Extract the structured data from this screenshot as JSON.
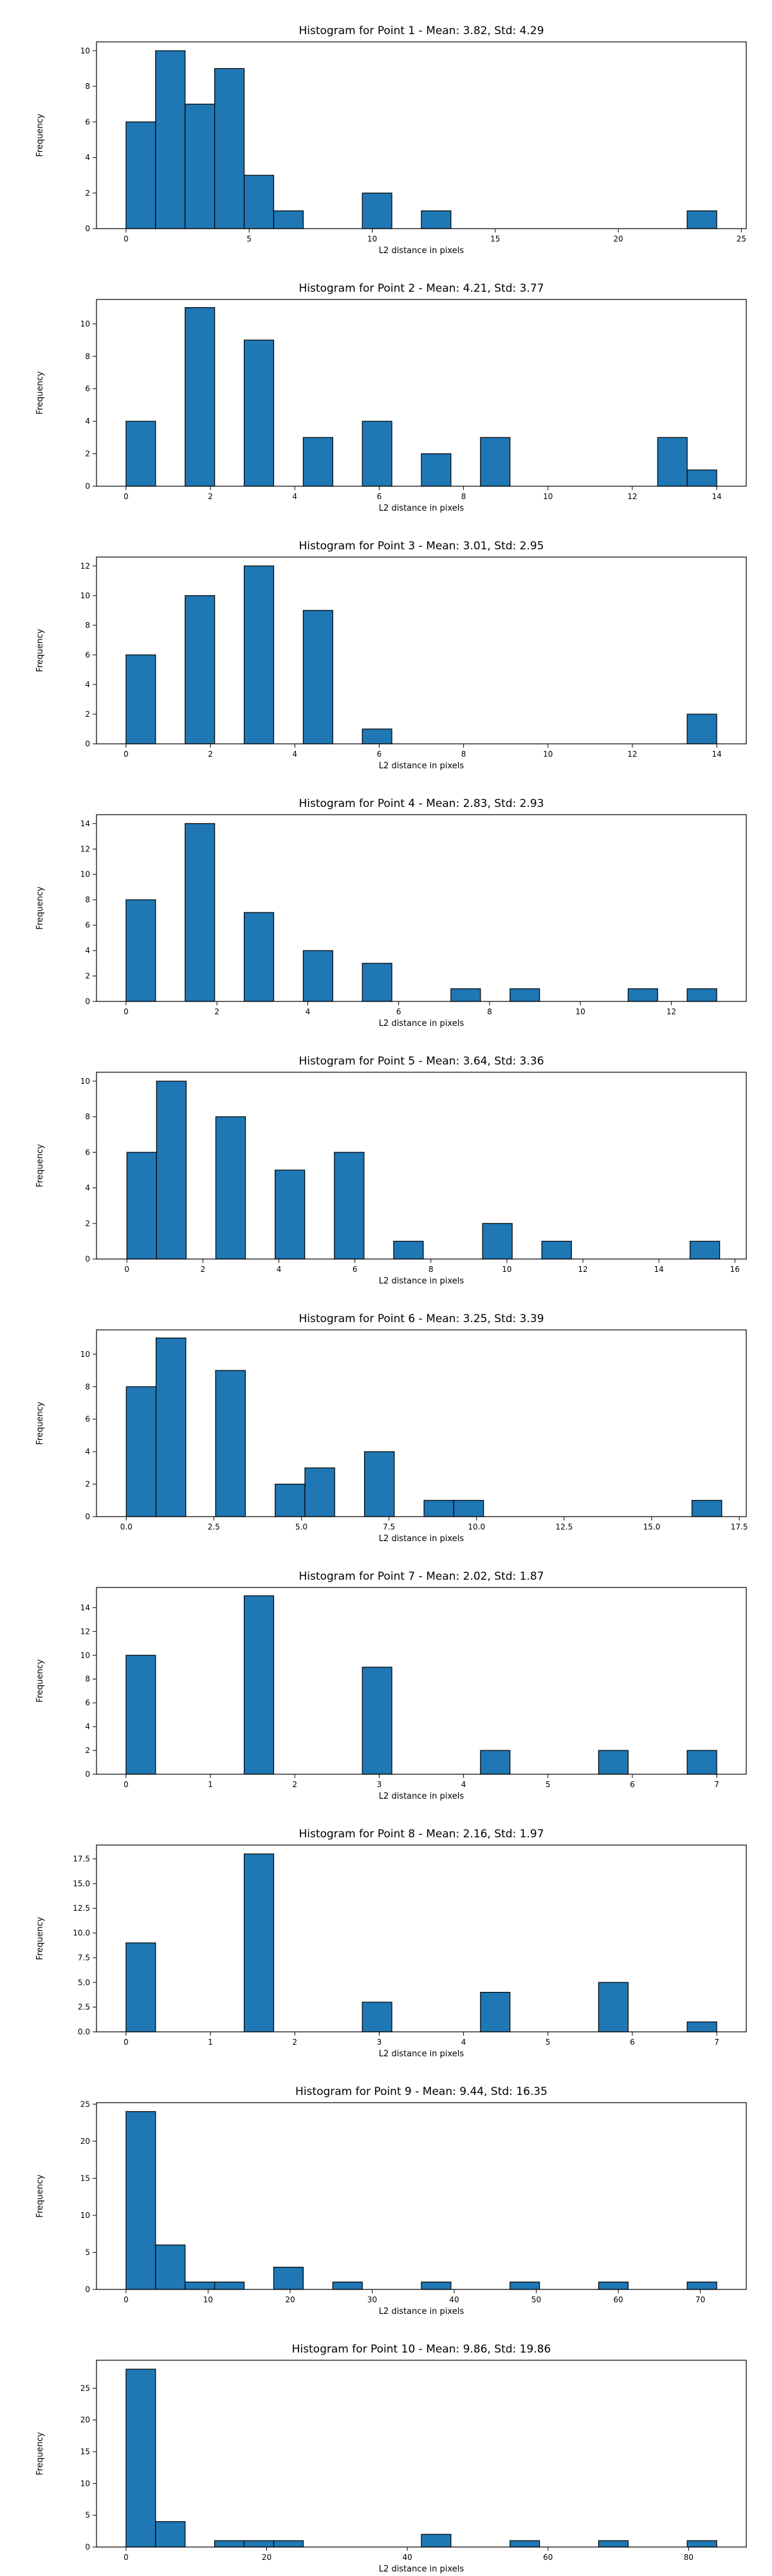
{
  "chart_data": [
    {
      "type": "bar",
      "title": "Histogram for Point 1 - Mean: 3.82, Std: 4.29",
      "xlabel": "L2 distance in pixels",
      "ylabel": "Frequency",
      "xlim": [
        -1.2,
        25.2
      ],
      "ylim": [
        0,
        10.5
      ],
      "xticks": [
        0,
        5,
        10,
        15,
        20,
        25
      ],
      "xtick_labels": [
        "0",
        "5",
        "10",
        "15",
        "20",
        "25"
      ],
      "yticks": [
        0,
        2,
        4,
        6,
        8,
        10
      ],
      "ytick_labels": [
        "0",
        "2",
        "4",
        "6",
        "8",
        "10"
      ],
      "bin_width": 1.2,
      "bars": [
        {
          "x0": 0.0,
          "value": 6
        },
        {
          "x0": 1.2,
          "value": 10
        },
        {
          "x0": 2.4,
          "value": 7
        },
        {
          "x0": 3.6,
          "value": 9
        },
        {
          "x0": 4.8,
          "value": 3
        },
        {
          "x0": 6.0,
          "value": 1
        },
        {
          "x0": 9.6,
          "value": 2
        },
        {
          "x0": 12.0,
          "value": 1
        },
        {
          "x0": 22.8,
          "value": 1
        }
      ]
    },
    {
      "type": "bar",
      "title": "Histogram for Point 2 - Mean: 4.21, Std: 3.77",
      "xlabel": "L2 distance in pixels",
      "ylabel": "Frequency",
      "xlim": [
        -0.7,
        14.7
      ],
      "ylim": [
        0,
        11.5
      ],
      "xticks": [
        0,
        2,
        4,
        6,
        8,
        10,
        12,
        14
      ],
      "xtick_labels": [
        "0",
        "2",
        "4",
        "6",
        "8",
        "10",
        "12",
        "14"
      ],
      "yticks": [
        0,
        2,
        4,
        6,
        8,
        10
      ],
      "ytick_labels": [
        "0",
        "2",
        "4",
        "6",
        "8",
        "10"
      ],
      "bin_width": 0.7,
      "bars": [
        {
          "x0": 0.0,
          "value": 4
        },
        {
          "x0": 1.4,
          "value": 11
        },
        {
          "x0": 2.8,
          "value": 9
        },
        {
          "x0": 4.2,
          "value": 3
        },
        {
          "x0": 5.6,
          "value": 4
        },
        {
          "x0": 7.0,
          "value": 2
        },
        {
          "x0": 8.4,
          "value": 3
        },
        {
          "x0": 12.6,
          "value": 3
        },
        {
          "x0": 13.3,
          "value": 1
        }
      ]
    },
    {
      "type": "bar",
      "title": "Histogram for Point 3 - Mean: 3.01, Std: 2.95",
      "xlabel": "L2 distance in pixels",
      "ylabel": "Frequency",
      "xlim": [
        -0.7,
        14.7
      ],
      "ylim": [
        0,
        12.6
      ],
      "xticks": [
        0,
        2,
        4,
        6,
        8,
        10,
        12,
        14
      ],
      "xtick_labels": [
        "0",
        "2",
        "4",
        "6",
        "8",
        "10",
        "12",
        "14"
      ],
      "yticks": [
        0,
        2,
        4,
        6,
        8,
        10,
        12
      ],
      "ytick_labels": [
        "0",
        "2",
        "4",
        "6",
        "8",
        "10",
        "12"
      ],
      "bin_width": 0.7,
      "bars": [
        {
          "x0": 0.0,
          "value": 6
        },
        {
          "x0": 1.4,
          "value": 10
        },
        {
          "x0": 2.8,
          "value": 12
        },
        {
          "x0": 4.2,
          "value": 9
        },
        {
          "x0": 5.6,
          "value": 1
        },
        {
          "x0": 13.3,
          "value": 2
        }
      ]
    },
    {
      "type": "bar",
      "title": "Histogram for Point 4 - Mean: 2.83, Std: 2.93",
      "xlabel": "L2 distance in pixels",
      "ylabel": "Frequency",
      "xlim": [
        -0.65,
        13.65
      ],
      "ylim": [
        0,
        14.7
      ],
      "xticks": [
        0,
        2,
        4,
        6,
        8,
        10,
        12
      ],
      "xtick_labels": [
        "0",
        "2",
        "4",
        "6",
        "8",
        "10",
        "12"
      ],
      "yticks": [
        0,
        2,
        4,
        6,
        8,
        10,
        12,
        14
      ],
      "ytick_labels": [
        "0",
        "2",
        "4",
        "6",
        "8",
        "10",
        "12",
        "14"
      ],
      "bin_width": 0.65,
      "bars": [
        {
          "x0": 0.0,
          "value": 8
        },
        {
          "x0": 1.3,
          "value": 14
        },
        {
          "x0": 2.6,
          "value": 7
        },
        {
          "x0": 3.9,
          "value": 4
        },
        {
          "x0": 5.2,
          "value": 3
        },
        {
          "x0": 7.15,
          "value": 1
        },
        {
          "x0": 8.45,
          "value": 1
        },
        {
          "x0": 11.05,
          "value": 1
        },
        {
          "x0": 12.35,
          "value": 1
        }
      ]
    },
    {
      "type": "bar",
      "title": "Histogram for Point 5 - Mean: 3.64, Std: 3.36",
      "xlabel": "L2 distance in pixels",
      "ylabel": "Frequency",
      "xlim": [
        -0.8,
        16.3
      ],
      "ylim": [
        0,
        10.5
      ],
      "xticks": [
        0,
        2,
        4,
        6,
        8,
        10,
        12,
        14,
        16
      ],
      "xtick_labels": [
        "0",
        "2",
        "4",
        "6",
        "8",
        "10",
        "12",
        "14",
        "16"
      ],
      "yticks": [
        0,
        2,
        4,
        6,
        8,
        10
      ],
      "ytick_labels": [
        "0",
        "2",
        "4",
        "6",
        "8",
        "10"
      ],
      "bin_width": 0.78,
      "bars": [
        {
          "x0": 0.0,
          "value": 6
        },
        {
          "x0": 0.78,
          "value": 10
        },
        {
          "x0": 2.34,
          "value": 8
        },
        {
          "x0": 3.9,
          "value": 5
        },
        {
          "x0": 5.46,
          "value": 6
        },
        {
          "x0": 7.02,
          "value": 1
        },
        {
          "x0": 9.36,
          "value": 2
        },
        {
          "x0": 10.92,
          "value": 1
        },
        {
          "x0": 14.82,
          "value": 1
        }
      ]
    },
    {
      "type": "bar",
      "title": "Histogram for Point 6 - Mean: 3.25, Std: 3.39",
      "xlabel": "L2 distance in pixels",
      "ylabel": "Frequency",
      "xlim": [
        -0.85,
        17.7
      ],
      "ylim": [
        0,
        11.5
      ],
      "xticks": [
        0,
        2.5,
        5,
        7.5,
        10,
        12.5,
        15,
        17.5
      ],
      "xtick_labels": [
        "0.0",
        "2.5",
        "5.0",
        "7.5",
        "10.0",
        "12.5",
        "15.0",
        "17.5"
      ],
      "yticks": [
        0,
        2,
        4,
        6,
        8,
        10
      ],
      "ytick_labels": [
        "0",
        "2",
        "4",
        "6",
        "8",
        "10"
      ],
      "bin_width": 0.85,
      "bars": [
        {
          "x0": 0.0,
          "value": 8
        },
        {
          "x0": 0.85,
          "value": 11
        },
        {
          "x0": 2.55,
          "value": 9
        },
        {
          "x0": 4.25,
          "value": 2
        },
        {
          "x0": 5.1,
          "value": 3
        },
        {
          "x0": 6.8,
          "value": 4
        },
        {
          "x0": 8.5,
          "value": 1
        },
        {
          "x0": 9.35,
          "value": 1
        },
        {
          "x0": 16.15,
          "value": 1
        }
      ]
    },
    {
      "type": "bar",
      "title": "Histogram for Point 7 - Mean: 2.02, Std: 1.87",
      "xlabel": "L2 distance in pixels",
      "ylabel": "Frequency",
      "xlim": [
        -0.35,
        7.35
      ],
      "ylim": [
        0,
        15.7
      ],
      "xticks": [
        0,
        1,
        2,
        3,
        4,
        5,
        6,
        7
      ],
      "xtick_labels": [
        "0",
        "1",
        "2",
        "3",
        "4",
        "5",
        "6",
        "7"
      ],
      "yticks": [
        0,
        2,
        4,
        6,
        8,
        10,
        12,
        14
      ],
      "ytick_labels": [
        "0",
        "2",
        "4",
        "6",
        "8",
        "10",
        "12",
        "14"
      ],
      "bin_width": 0.35,
      "bars": [
        {
          "x0": 0.0,
          "value": 10
        },
        {
          "x0": 1.4,
          "value": 15
        },
        {
          "x0": 2.8,
          "value": 9
        },
        {
          "x0": 4.2,
          "value": 2
        },
        {
          "x0": 5.6,
          "value": 2
        },
        {
          "x0": 6.65,
          "value": 2
        }
      ]
    },
    {
      "type": "bar",
      "title": "Histogram for Point 8 - Mean: 2.16, Std: 1.97",
      "xlabel": "L2 distance in pixels",
      "ylabel": "Frequency",
      "xlim": [
        -0.35,
        7.35
      ],
      "ylim": [
        0,
        18.9
      ],
      "xticks": [
        0,
        1,
        2,
        3,
        4,
        5,
        6,
        7
      ],
      "xtick_labels": [
        "0",
        "1",
        "2",
        "3",
        "4",
        "5",
        "6",
        "7"
      ],
      "yticks": [
        0,
        2.5,
        5,
        7.5,
        10,
        12.5,
        15,
        17.5
      ],
      "ytick_labels": [
        "0.0",
        "2.5",
        "5.0",
        "7.5",
        "10.0",
        "12.5",
        "15.0",
        "17.5"
      ],
      "bin_width": 0.35,
      "bars": [
        {
          "x0": 0.0,
          "value": 9
        },
        {
          "x0": 1.4,
          "value": 18
        },
        {
          "x0": 2.8,
          "value": 3
        },
        {
          "x0": 4.2,
          "value": 4
        },
        {
          "x0": 5.6,
          "value": 5
        },
        {
          "x0": 6.65,
          "value": 1
        }
      ]
    },
    {
      "type": "bar",
      "title": "Histogram for Point 9 - Mean: 9.44, Std: 16.35",
      "xlabel": "L2 distance in pixels",
      "ylabel": "Frequency",
      "xlim": [
        -3.6,
        75.6
      ],
      "ylim": [
        0,
        25.2
      ],
      "xticks": [
        0,
        10,
        20,
        30,
        40,
        50,
        60,
        70
      ],
      "xtick_labels": [
        "0",
        "10",
        "20",
        "30",
        "40",
        "50",
        "60",
        "70"
      ],
      "yticks": [
        0,
        5,
        10,
        15,
        20,
        25
      ],
      "ytick_labels": [
        "0",
        "5",
        "10",
        "15",
        "20",
        "25"
      ],
      "bin_width": 3.6,
      "bars": [
        {
          "x0": 0.0,
          "value": 24
        },
        {
          "x0": 3.6,
          "value": 6
        },
        {
          "x0": 7.2,
          "value": 1
        },
        {
          "x0": 10.8,
          "value": 1
        },
        {
          "x0": 18.0,
          "value": 3
        },
        {
          "x0": 25.2,
          "value": 1
        },
        {
          "x0": 36.0,
          "value": 1
        },
        {
          "x0": 46.8,
          "value": 1
        },
        {
          "x0": 57.6,
          "value": 1
        },
        {
          "x0": 68.4,
          "value": 1
        }
      ]
    },
    {
      "type": "bar",
      "title": "Histogram for Point 10 - Mean: 9.86, Std: 19.86",
      "xlabel": "L2 distance in pixels",
      "ylabel": "Frequency",
      "xlim": [
        -4.2,
        88.2
      ],
      "ylim": [
        0,
        29.4
      ],
      "xticks": [
        0,
        20,
        40,
        60,
        80
      ],
      "xtick_labels": [
        "0",
        "20",
        "40",
        "60",
        "80"
      ],
      "yticks": [
        0,
        5,
        10,
        15,
        20,
        25
      ],
      "ytick_labels": [
        "0",
        "5",
        "10",
        "15",
        "20",
        "25"
      ],
      "bin_width": 4.2,
      "bars": [
        {
          "x0": 0.0,
          "value": 28
        },
        {
          "x0": 4.2,
          "value": 4
        },
        {
          "x0": 12.6,
          "value": 1
        },
        {
          "x0": 16.8,
          "value": 1
        },
        {
          "x0": 21.0,
          "value": 1
        },
        {
          "x0": 42.0,
          "value": 2
        },
        {
          "x0": 54.6,
          "value": 1
        },
        {
          "x0": 67.2,
          "value": 1
        },
        {
          "x0": 79.8,
          "value": 1
        }
      ]
    }
  ]
}
